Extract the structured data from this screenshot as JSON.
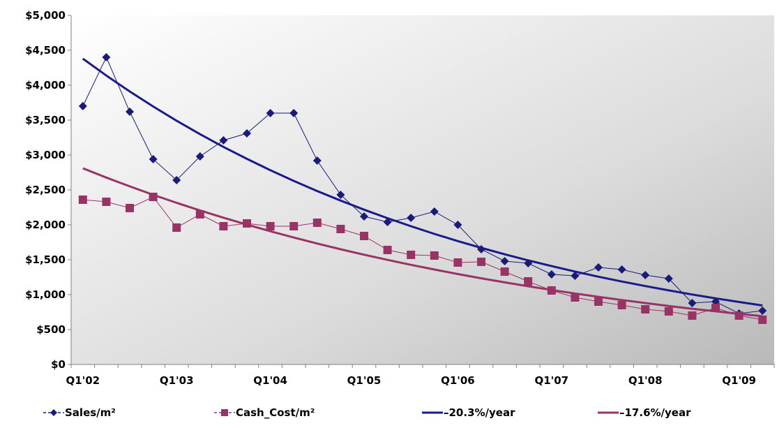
{
  "chart_data": {
    "type": "line",
    "title": "",
    "xlabel": "",
    "ylabel": "",
    "ylim": [
      0,
      5000
    ],
    "y_ticks": [
      "$0",
      "$500",
      "$1,000",
      "$1,500",
      "$2,000",
      "$2,500",
      "$3,000",
      "$3,500",
      "$4,000",
      "$4,500",
      "$5,000"
    ],
    "y_tick_values": [
      0,
      500,
      1000,
      1500,
      2000,
      2500,
      3000,
      3500,
      4000,
      4500,
      5000
    ],
    "x_tick_labels": [
      "Q1'02",
      "Q1'03",
      "Q1'04",
      "Q1'05",
      "Q1'06",
      "Q1'07",
      "Q1'08",
      "Q1'09"
    ],
    "legend_position": "bottom",
    "grid": false,
    "background": "gradient gray",
    "series": [
      {
        "name": "Sales/m²",
        "kind": "marker-line",
        "marker": "diamond",
        "color": "#1a1a7a",
        "values": [
          3700,
          4400,
          3620,
          2940,
          2640,
          2980,
          3210,
          3310,
          3600,
          3600,
          2920,
          2430,
          2120,
          2040,
          2100,
          2190,
          2000,
          1650,
          1480,
          1450,
          1290,
          1270,
          1390,
          1360,
          1280,
          1230,
          880,
          900,
          730,
          770
        ]
      },
      {
        "name": "Cash_Cost/m²",
        "kind": "marker-line",
        "marker": "square",
        "color": "#993366",
        "values": [
          2360,
          2330,
          2240,
          2400,
          1960,
          2150,
          1980,
          2020,
          1980,
          1980,
          2030,
          1940,
          1840,
          1640,
          1570,
          1560,
          1460,
          1470,
          1330,
          1190,
          1060,
          960,
          900,
          850,
          790,
          760,
          700,
          810,
          700,
          640
        ]
      },
      {
        "name": "–20.3%/year",
        "kind": "trend",
        "color": "#1a1a8c",
        "start_value": 4380,
        "annual_rate": -0.203
      },
      {
        "name": "–17.6%/year",
        "kind": "trend",
        "color": "#993366",
        "start_value": 2810,
        "annual_rate": -0.176
      }
    ]
  }
}
